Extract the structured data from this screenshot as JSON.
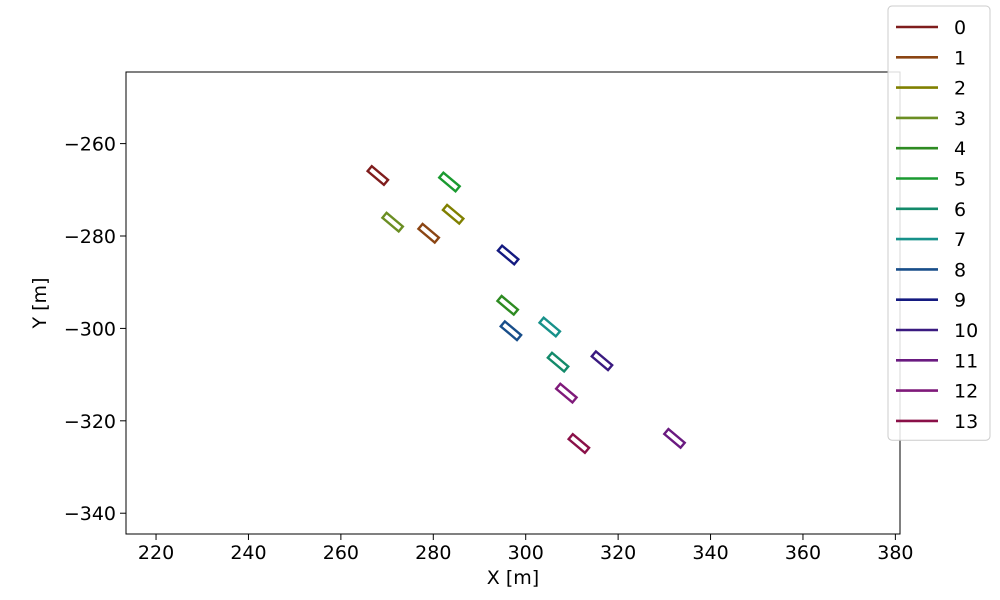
{
  "chart_data": {
    "type": "scatter",
    "xlabel": "X [m]",
    "ylabel": "Y [m]",
    "xlim": [
      213.5,
      381
    ],
    "ylim": [
      -344.5,
      -244.5
    ],
    "xticks": [
      220,
      240,
      260,
      280,
      300,
      320,
      340,
      360,
      380
    ],
    "yticks": [
      -260,
      -280,
      -300,
      -320,
      -340
    ],
    "xtick_labels": [
      "220",
      "240",
      "260",
      "280",
      "300",
      "320",
      "340",
      "360",
      "380"
    ],
    "ytick_labels": [
      "−260",
      "−280",
      "−300",
      "−320",
      "−340"
    ],
    "grid": false,
    "legend_placement": "top-right, outside plot",
    "shape": "rectangle",
    "box_length": 4.6,
    "box_width": 1.4,
    "series": [
      {
        "name": "0",
        "color": "#7f1d1d",
        "x": 268.0,
        "y": -266.9,
        "angle": 50
      },
      {
        "name": "1",
        "color": "#8b4513",
        "x": 279.0,
        "y": -279.4,
        "angle": 50
      },
      {
        "name": "2",
        "color": "#808000",
        "x": 284.3,
        "y": -275.3,
        "angle": 50
      },
      {
        "name": "3",
        "color": "#6b8e23",
        "x": 271.2,
        "y": -277.0,
        "angle": 50
      },
      {
        "name": "4",
        "color": "#2e8b22",
        "x": 296.1,
        "y": -295.0,
        "angle": 50
      },
      {
        "name": "5",
        "color": "#1a9a30",
        "x": 283.5,
        "y": -268.3,
        "angle": 50
      },
      {
        "name": "6",
        "color": "#138a6a",
        "x": 307.0,
        "y": -307.3,
        "angle": 50
      },
      {
        "name": "7",
        "color": "#17918a",
        "x": 305.2,
        "y": -299.7,
        "angle": 50
      },
      {
        "name": "8",
        "color": "#184e8a",
        "x": 296.8,
        "y": -300.5,
        "angle": 50
      },
      {
        "name": "9",
        "color": "#141a80",
        "x": 296.2,
        "y": -284.1,
        "angle": 50
      },
      {
        "name": "10",
        "color": "#3a1a80",
        "x": 316.5,
        "y": -307.0,
        "angle": 50
      },
      {
        "name": "11",
        "color": "#6a1a80",
        "x": 332.2,
        "y": -323.8,
        "angle": 50
      },
      {
        "name": "12",
        "color": "#7f1a7a",
        "x": 308.8,
        "y": -314.0,
        "angle": 50
      },
      {
        "name": "13",
        "color": "#8a1048",
        "x": 311.5,
        "y": -324.9,
        "angle": 50
      }
    ]
  }
}
